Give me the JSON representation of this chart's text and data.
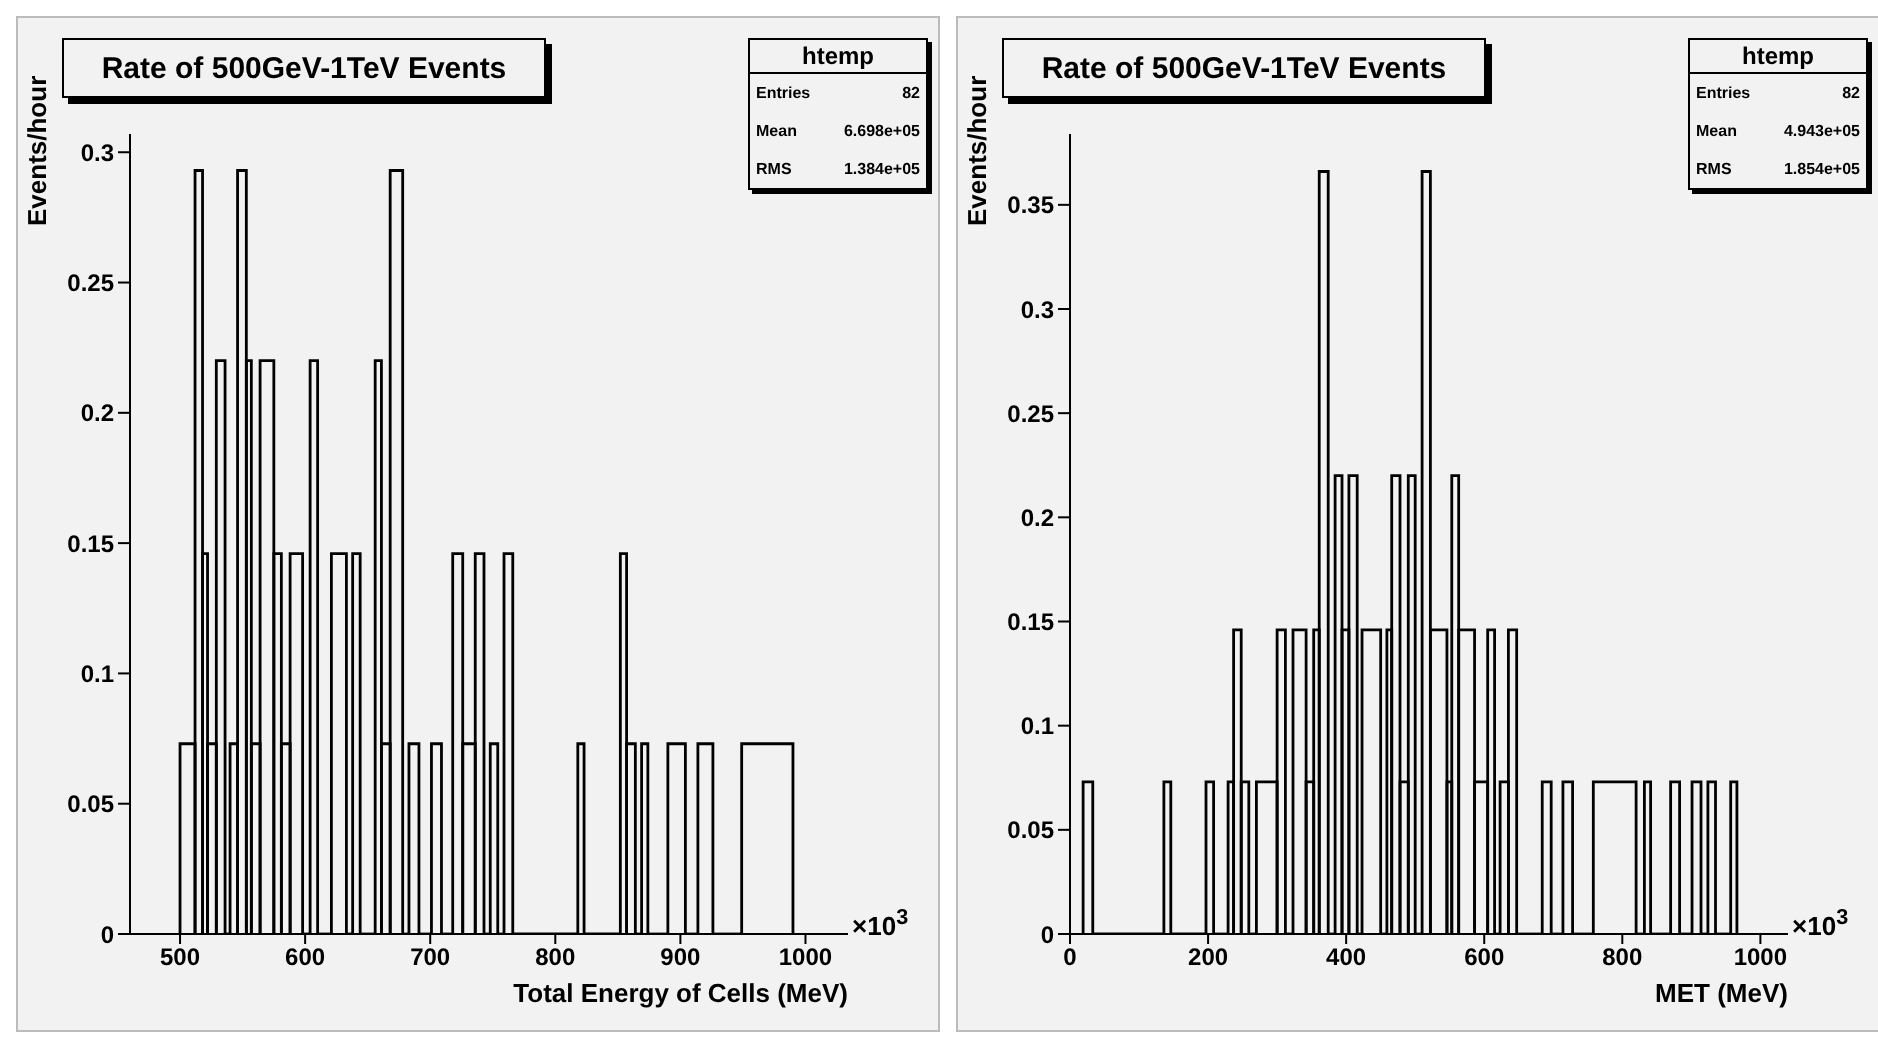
{
  "chart_data": [
    {
      "type": "histogram",
      "title": "Rate of 500GeV-1TeV Events",
      "xlabel": "Total Energy of Cells (MeV)",
      "ylabel": "Events/hour",
      "color": "#000000",
      "bins": [
        500,
        512,
        518,
        522,
        529,
        536,
        540,
        546,
        553,
        557,
        564,
        575,
        581,
        588,
        598,
        604,
        610,
        621,
        633,
        638,
        644,
        656,
        661,
        668,
        678,
        683,
        691,
        701,
        709,
        718,
        726,
        736,
        743,
        748,
        754,
        759,
        766,
        818,
        823,
        852,
        857,
        864,
        869,
        874,
        890,
        904,
        914,
        926,
        949,
        990
      ],
      "values": [
        0.073,
        0.293,
        0.146,
        0.073,
        0.22,
        0,
        0.073,
        0.293,
        0.22,
        0.073,
        0.22,
        0.146,
        0.073,
        0.146,
        0,
        0.22,
        0,
        0.146,
        0,
        0.146,
        0,
        0.22,
        0.073,
        0.293,
        0,
        0.073,
        0,
        0.073,
        0,
        0.146,
        0.073,
        0.146,
        0,
        0.073,
        0,
        0.146,
        0,
        0.073,
        0,
        0.146,
        0.073,
        0,
        0.073,
        0,
        0.073,
        0,
        0.073,
        0,
        0.073
      ],
      "xlim": [
        460,
        1034
      ],
      "xticks": [
        500,
        600,
        700,
        800,
        900,
        1000
      ],
      "ylim": [
        0,
        0.307
      ],
      "yticks": [
        0,
        0.05,
        0.1,
        0.15,
        0.2,
        0.25,
        0.3
      ],
      "annotations": [
        "×10$^{3}$",
        "htemp",
        "Entries",
        "82",
        "Mean",
        "6.698e+05",
        "RMS",
        "1.384e+05"
      ]
    },
    {
      "type": "histogram",
      "title": "Rate of 500GeV-1TeV Events",
      "xlabel": "MET (MeV)",
      "ylabel": "Events/hour",
      "color": "#000000",
      "bins": [
        19,
        33,
        136,
        146,
        197,
        208,
        229,
        237,
        248,
        259,
        270,
        300,
        312,
        323,
        342,
        353,
        361,
        374,
        384,
        394,
        404,
        416,
        423,
        450,
        459,
        466,
        478,
        490,
        500,
        510,
        522,
        546,
        553,
        563,
        586,
        605,
        615,
        623,
        635,
        647,
        684,
        697,
        714,
        728,
        758,
        820,
        832,
        841,
        870,
        883,
        901,
        914,
        924,
        935,
        957,
        966
      ],
      "values": [
        0.073,
        0,
        0.073,
        0,
        0.073,
        0,
        0.073,
        0.146,
        0.073,
        0,
        0.073,
        0.146,
        0,
        0.146,
        0.073,
        0.146,
        0.366,
        0,
        0.22,
        0.146,
        0.22,
        0,
        0.146,
        0,
        0.146,
        0.22,
        0.073,
        0.22,
        0,
        0.366,
        0.146,
        0.073,
        0.22,
        0.146,
        0.073,
        0.146,
        0,
        0.073,
        0.146,
        0,
        0.073,
        0,
        0.073,
        0,
        0.073,
        0,
        0.073,
        0,
        0.073,
        0,
        0.073,
        0,
        0.073,
        0,
        0.073
      ],
      "xlim": [
        0,
        1040
      ],
      "xticks": [
        0,
        200,
        400,
        600,
        800,
        1000
      ],
      "ylim": [
        0,
        0.384
      ],
      "yticks": [
        0,
        0.05,
        0.1,
        0.15,
        0.2,
        0.25,
        0.3,
        0.35
      ],
      "annotations": [
        "×10$^{3}$",
        "htemp",
        "Entries",
        "82",
        "Mean",
        "4.943e+05",
        "RMS",
        "1.854e+05"
      ]
    }
  ]
}
